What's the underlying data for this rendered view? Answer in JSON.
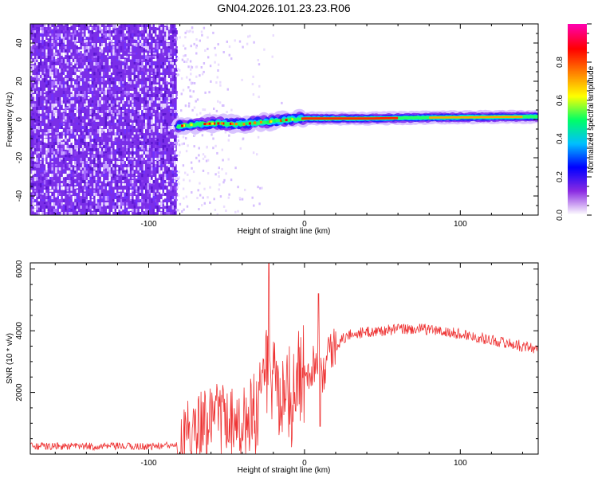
{
  "title": "GN04.2026.101.23.23.R06",
  "chart_data": [
    {
      "type": "heatmap",
      "xlabel": "Height of straight line (km)",
      "ylabel": "Frequency (Hz)",
      "xlim": [
        -176,
        150
      ],
      "ylim": [
        -50,
        50
      ],
      "xticks": [
        -100,
        0,
        100
      ],
      "xtick_labels": [
        "-100",
        "0",
        "100"
      ],
      "yticks": [
        -40,
        -20,
        0,
        20,
        40
      ],
      "ytick_labels": [
        "-40",
        "-20",
        "0",
        "20",
        "40"
      ],
      "noise_region_x": [
        -176,
        -82
      ],
      "ridge_frequency_hz": [
        {
          "x": -82,
          "f": -3.5
        },
        {
          "x": -70,
          "f": -2.5
        },
        {
          "x": -55,
          "f": -2.0
        },
        {
          "x": -40,
          "f": -2.5
        },
        {
          "x": -30,
          "f": -1.5
        },
        {
          "x": -20,
          "f": -1.0
        },
        {
          "x": -10,
          "f": 0.0
        },
        {
          "x": 0,
          "f": 0.5
        },
        {
          "x": 40,
          "f": 0.5
        },
        {
          "x": 80,
          "f": 1.0
        },
        {
          "x": 150,
          "f": 1.5
        }
      ],
      "colorbar": {
        "label": "Normalized spectral amplitude",
        "range": [
          0,
          1
        ],
        "ticks": [
          0.0,
          0.2,
          0.4,
          0.6,
          0.8
        ],
        "tick_labels": [
          "0.0",
          "0.2",
          "0.4",
          "0.6",
          "0.8"
        ],
        "colors": [
          "#ffffff",
          "#8a2be2",
          "#0000ff",
          "#00bfff",
          "#00ff66",
          "#ffff00",
          "#ff7f00",
          "#ff0000",
          "#ff00aa"
        ]
      }
    },
    {
      "type": "line",
      "xlabel": "Height of straight line (km)",
      "ylabel": "SNR (10 * v/v)",
      "xlim": [
        -176,
        150
      ],
      "ylim": [
        0,
        6200
      ],
      "xticks": [
        -100,
        0,
        100
      ],
      "xtick_labels": [
        "-100",
        "0",
        "100"
      ],
      "yticks": [
        2000,
        4000,
        6000
      ],
      "ytick_labels": [
        "2000",
        "4000",
        "6000"
      ],
      "series": [
        {
          "name": "SNR",
          "color": "#ee3333",
          "x": [
            -176,
            -150,
            -120,
            -100,
            -85,
            -80,
            -75,
            -70,
            -60,
            -50,
            -40,
            -30,
            -25,
            -23,
            -20,
            -15,
            -10,
            -5,
            0,
            5,
            10,
            12,
            15,
            20,
            25,
            30,
            40,
            50,
            60,
            70,
            80,
            90,
            100,
            110,
            120,
            130,
            140,
            150
          ],
          "values": [
            250,
            250,
            250,
            250,
            280,
            450,
            800,
            1000,
            1150,
            1250,
            1150,
            1700,
            2600,
            2700,
            2400,
            2000,
            2300,
            2500,
            2700,
            2900,
            3050,
            2600,
            3300,
            3500,
            3750,
            3900,
            3950,
            4000,
            4050,
            4050,
            4050,
            3950,
            3900,
            3800,
            3700,
            3600,
            3500,
            3400
          ]
        }
      ],
      "spikes": [
        {
          "x": -23,
          "value": 6200
        },
        {
          "x": 9,
          "value": 5200
        },
        {
          "x": 10,
          "value": 900
        }
      ]
    }
  ]
}
